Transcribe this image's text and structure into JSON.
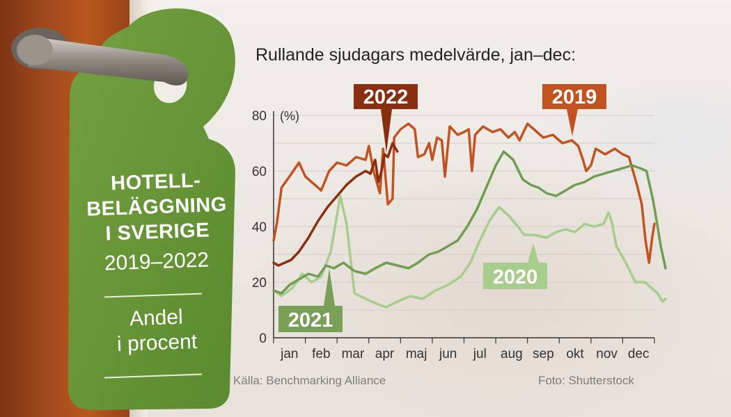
{
  "tag": {
    "title": "HOTELL-\nBELÄGGNING\nI SVERIGE",
    "years": "2019–2022",
    "subtitle": "Andel\ni procent"
  },
  "chart_heading": "Rullande sjudagars medelvärde, jan–dec:",
  "footer": {
    "source": "Källa: Benchmarking Alliance",
    "photo": "Foto: Shutterstock"
  },
  "chart_data": {
    "type": "line",
    "title": "Rullande sjudagars medelvärde, jan–dec:",
    "ylabel": "",
    "unit_label": "(%)",
    "ylim": [
      0,
      80
    ],
    "yticks": [
      0,
      20,
      40,
      60,
      80
    ],
    "xlim": [
      0,
      12
    ],
    "categories": [
      "jan",
      "feb",
      "mar",
      "apr",
      "maj",
      "jun",
      "jul",
      "aug",
      "sep",
      "okt",
      "nov",
      "dec"
    ],
    "grid": true,
    "series": [
      {
        "name": "2019",
        "color": "#c0531f",
        "label_bg": "#c0531f",
        "label_color": "#ffffff",
        "points": [
          [
            0.0,
            35
          ],
          [
            0.1,
            41
          ],
          [
            0.25,
            54
          ],
          [
            0.5,
            58
          ],
          [
            0.8,
            63
          ],
          [
            1.0,
            58
          ],
          [
            1.2,
            56
          ],
          [
            1.5,
            53
          ],
          [
            1.75,
            60
          ],
          [
            2.0,
            63
          ],
          [
            2.3,
            62
          ],
          [
            2.6,
            65
          ],
          [
            2.9,
            64
          ],
          [
            3.0,
            69
          ],
          [
            3.15,
            60
          ],
          [
            3.35,
            52
          ],
          [
            3.45,
            68
          ],
          [
            3.6,
            48
          ],
          [
            3.75,
            50
          ],
          [
            3.8,
            72
          ],
          [
            4.0,
            75
          ],
          [
            4.25,
            77
          ],
          [
            4.45,
            75
          ],
          [
            4.55,
            65
          ],
          [
            4.75,
            66
          ],
          [
            4.9,
            70
          ],
          [
            5.0,
            64
          ],
          [
            5.15,
            72
          ],
          [
            5.3,
            71
          ],
          [
            5.4,
            58
          ],
          [
            5.55,
            76
          ],
          [
            5.8,
            73
          ],
          [
            6.0,
            74
          ],
          [
            6.15,
            75
          ],
          [
            6.25,
            60
          ],
          [
            6.35,
            73
          ],
          [
            6.6,
            76
          ],
          [
            6.9,
            74
          ],
          [
            7.15,
            75
          ],
          [
            7.4,
            72
          ],
          [
            7.6,
            74
          ],
          [
            7.75,
            71
          ],
          [
            8.0,
            77
          ],
          [
            8.2,
            75
          ],
          [
            8.5,
            72
          ],
          [
            8.8,
            73
          ],
          [
            9.1,
            70
          ],
          [
            9.4,
            71
          ],
          [
            9.6,
            69
          ],
          [
            9.75,
            64
          ],
          [
            9.85,
            60
          ],
          [
            10.0,
            62
          ],
          [
            10.15,
            68
          ],
          [
            10.45,
            66
          ],
          [
            10.75,
            68
          ],
          [
            11.0,
            66
          ],
          [
            11.2,
            65
          ],
          [
            11.45,
            55
          ],
          [
            11.6,
            48
          ],
          [
            11.72,
            35
          ],
          [
            11.83,
            27
          ],
          [
            11.93,
            36
          ],
          [
            12.0,
            41
          ]
        ]
      },
      {
        "name": "2020",
        "color": "#a6cd8b",
        "label_bg": "#a6cd8b",
        "label_color": "#ffffff",
        "points": [
          [
            0.0,
            17
          ],
          [
            0.25,
            15
          ],
          [
            0.6,
            18
          ],
          [
            0.9,
            23
          ],
          [
            1.2,
            20
          ],
          [
            1.5,
            22
          ],
          [
            1.8,
            31
          ],
          [
            2.1,
            51
          ],
          [
            2.3,
            41
          ],
          [
            2.55,
            16
          ],
          [
            2.9,
            14
          ],
          [
            3.3,
            12
          ],
          [
            3.55,
            11
          ],
          [
            3.9,
            13
          ],
          [
            4.3,
            15
          ],
          [
            4.7,
            14
          ],
          [
            5.1,
            17
          ],
          [
            5.5,
            19
          ],
          [
            5.9,
            22
          ],
          [
            6.2,
            27
          ],
          [
            6.5,
            35
          ],
          [
            6.8,
            42
          ],
          [
            7.1,
            47
          ],
          [
            7.4,
            44
          ],
          [
            7.7,
            40
          ],
          [
            7.9,
            37
          ],
          [
            8.2,
            37
          ],
          [
            8.6,
            36
          ],
          [
            8.9,
            38
          ],
          [
            9.2,
            39
          ],
          [
            9.5,
            38
          ],
          [
            9.8,
            41
          ],
          [
            10.1,
            40
          ],
          [
            10.4,
            41
          ],
          [
            10.55,
            45
          ],
          [
            10.65,
            42
          ],
          [
            10.8,
            33
          ],
          [
            11.1,
            27
          ],
          [
            11.4,
            20
          ],
          [
            11.7,
            20
          ],
          [
            11.9,
            18
          ],
          [
            12.1,
            16
          ],
          [
            12.25,
            13
          ],
          [
            12.35,
            14
          ]
        ]
      },
      {
        "name": "2021",
        "color": "#6f9e50",
        "label_bg": "#7a9f57",
        "label_color": "#ffffff",
        "points": [
          [
            0.0,
            17
          ],
          [
            0.25,
            16
          ],
          [
            0.5,
            19
          ],
          [
            0.8,
            21
          ],
          [
            1.1,
            23
          ],
          [
            1.4,
            22
          ],
          [
            1.65,
            26
          ],
          [
            1.9,
            25
          ],
          [
            2.2,
            27
          ],
          [
            2.55,
            24
          ],
          [
            2.9,
            23
          ],
          [
            3.2,
            25
          ],
          [
            3.55,
            27
          ],
          [
            3.9,
            26
          ],
          [
            4.25,
            25
          ],
          [
            4.55,
            27
          ],
          [
            4.9,
            30
          ],
          [
            5.2,
            31
          ],
          [
            5.5,
            33
          ],
          [
            5.8,
            35
          ],
          [
            6.1,
            40
          ],
          [
            6.4,
            46
          ],
          [
            6.7,
            54
          ],
          [
            7.0,
            62
          ],
          [
            7.25,
            67
          ],
          [
            7.55,
            64
          ],
          [
            7.85,
            57
          ],
          [
            8.1,
            55
          ],
          [
            8.35,
            54
          ],
          [
            8.6,
            52
          ],
          [
            8.9,
            51
          ],
          [
            9.2,
            53
          ],
          [
            9.5,
            55
          ],
          [
            9.8,
            56
          ],
          [
            10.1,
            58
          ],
          [
            10.4,
            59
          ],
          [
            10.7,
            60
          ],
          [
            11.0,
            61
          ],
          [
            11.3,
            62
          ],
          [
            11.55,
            61
          ],
          [
            11.75,
            60
          ],
          [
            11.95,
            50
          ],
          [
            12.1,
            40
          ],
          [
            12.2,
            33
          ],
          [
            12.35,
            25
          ]
        ]
      },
      {
        "name": "2022",
        "color": "#8a2e10",
        "label_bg": "#8a2e10",
        "label_color": "#ffffff",
        "points": [
          [
            0.0,
            27
          ],
          [
            0.15,
            26
          ],
          [
            0.35,
            27
          ],
          [
            0.55,
            28
          ],
          [
            0.8,
            31
          ],
          [
            1.1,
            36
          ],
          [
            1.4,
            42
          ],
          [
            1.7,
            47
          ],
          [
            2.0,
            51
          ],
          [
            2.3,
            55
          ],
          [
            2.6,
            58
          ],
          [
            2.9,
            60
          ],
          [
            3.05,
            59
          ],
          [
            3.2,
            64
          ],
          [
            3.3,
            56
          ],
          [
            3.4,
            60
          ],
          [
            3.5,
            66
          ],
          [
            3.6,
            65
          ],
          [
            3.75,
            70
          ],
          [
            3.9,
            67
          ]
        ]
      }
    ]
  }
}
